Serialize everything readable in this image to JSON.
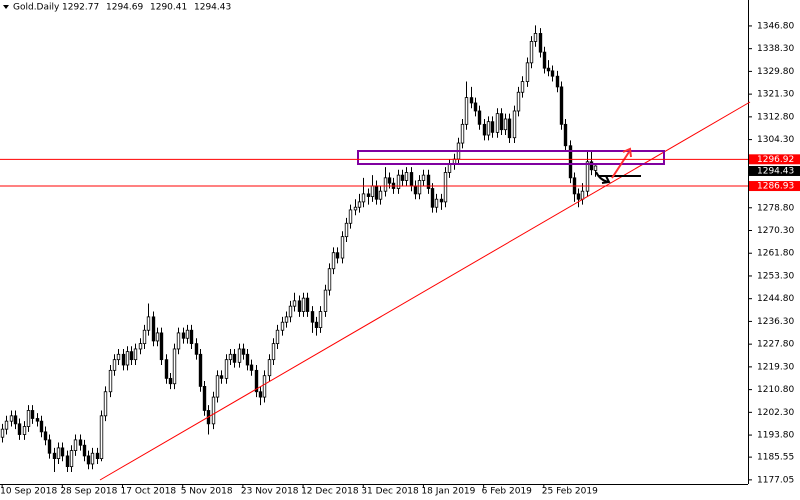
{
  "chart_data": {
    "type": "candlestick",
    "title": "Gold.Daily",
    "xlim": [
      -0.5,
      173.5
    ],
    "ylim": [
      1175.5,
      1356.5
    ],
    "yticks": [
      {
        "value": 1346.8,
        "label": "1346.80"
      },
      {
        "value": 1338.3,
        "label": "1338.30"
      },
      {
        "value": 1329.8,
        "label": "1329.80"
      },
      {
        "value": 1321.3,
        "label": "1321.30"
      },
      {
        "value": 1312.8,
        "label": "1312.80"
      },
      {
        "value": 1304.3,
        "label": "1304.30"
      },
      {
        "value": 1278.8,
        "label": "1278.80"
      },
      {
        "value": 1270.3,
        "label": "1270.30"
      },
      {
        "value": 1261.8,
        "label": "1261.80"
      },
      {
        "value": 1253.3,
        "label": "1253.30"
      },
      {
        "value": 1244.8,
        "label": "1244.80"
      },
      {
        "value": 1236.3,
        "label": "1236.30"
      },
      {
        "value": 1227.8,
        "label": "1227.80"
      },
      {
        "value": 1219.3,
        "label": "1219.30"
      },
      {
        "value": 1210.8,
        "label": "1210.80"
      },
      {
        "value": 1202.3,
        "label": "1202.30"
      },
      {
        "value": 1193.8,
        "label": "1193.80"
      },
      {
        "value": 1185.55,
        "label": "1185.55"
      },
      {
        "value": 1177.05,
        "label": "1177.05"
      }
    ],
    "xticks": [
      {
        "value": 0,
        "label": "10 Sep 2018"
      },
      {
        "value": 14,
        "label": "28 Sep 2018"
      },
      {
        "value": 28,
        "label": "17 Oct 2018"
      },
      {
        "value": 42,
        "label": "5 Nov 2018"
      },
      {
        "value": 56,
        "label": "23 Nov 2018"
      },
      {
        "value": 70,
        "label": "12 Dec 2018"
      },
      {
        "value": 84,
        "label": "31 Dec 2018"
      },
      {
        "value": 98,
        "label": "18 Jan 2019"
      },
      {
        "value": 112,
        "label": "6 Feb 2019"
      },
      {
        "value": 126,
        "label": "25 Feb 2019"
      }
    ],
    "hlines": [
      1296.92,
      1286.93
    ],
    "hline_color": "#ff0000",
    "bull_color": "#ffffff",
    "bear_color": "#000000",
    "ohlc": [
      [
        1193,
        1198,
        1191,
        1196
      ],
      [
        1196,
        1201,
        1194,
        1199
      ],
      [
        1199,
        1203,
        1197,
        1201
      ],
      [
        1201,
        1203,
        1196,
        1198
      ],
      [
        1198,
        1200,
        1192,
        1194
      ],
      [
        1194,
        1199,
        1192,
        1197
      ],
      [
        1197,
        1205,
        1195,
        1203
      ],
      [
        1203,
        1205,
        1198,
        1200
      ],
      [
        1200,
        1202,
        1197,
        1199
      ],
      [
        1199,
        1201,
        1193,
        1195
      ],
      [
        1195,
        1197,
        1190,
        1192
      ],
      [
        1192,
        1194,
        1185,
        1187
      ],
      [
        1187,
        1189,
        1180,
        1185
      ],
      [
        1185,
        1191,
        1183,
        1189
      ],
      [
        1189,
        1191,
        1184,
        1186
      ],
      [
        1186,
        1188,
        1180,
        1182
      ],
      [
        1182,
        1190,
        1180,
        1188
      ],
      [
        1188,
        1194,
        1186,
        1192
      ],
      [
        1192,
        1194,
        1188,
        1190
      ],
      [
        1190,
        1192,
        1184,
        1186
      ],
      [
        1186,
        1188,
        1181,
        1183
      ],
      [
        1183,
        1189,
        1181,
        1187
      ],
      [
        1187,
        1189,
        1183,
        1185
      ],
      [
        1185,
        1203,
        1184,
        1201
      ],
      [
        1201,
        1212,
        1199,
        1210
      ],
      [
        1210,
        1220,
        1208,
        1218
      ],
      [
        1218,
        1224,
        1216,
        1222
      ],
      [
        1222,
        1226,
        1220,
        1224
      ],
      [
        1224,
        1226,
        1218,
        1220
      ],
      [
        1220,
        1227,
        1218,
        1225
      ],
      [
        1225,
        1227,
        1220,
        1222
      ],
      [
        1222,
        1228,
        1220,
        1226
      ],
      [
        1226,
        1230,
        1224,
        1228
      ],
      [
        1228,
        1235,
        1226,
        1233
      ],
      [
        1233,
        1243,
        1231,
        1238
      ],
      [
        1238,
        1240,
        1227,
        1229
      ],
      [
        1229,
        1234,
        1227,
        1232
      ],
      [
        1232,
        1234,
        1220,
        1222
      ],
      [
        1222,
        1224,
        1213,
        1215
      ],
      [
        1215,
        1217,
        1211,
        1213
      ],
      [
        1213,
        1228,
        1211,
        1226
      ],
      [
        1226,
        1234,
        1224,
        1232
      ],
      [
        1232,
        1234,
        1228,
        1230
      ],
      [
        1230,
        1235,
        1228,
        1233
      ],
      [
        1233,
        1235,
        1226,
        1228
      ],
      [
        1228,
        1230,
        1222,
        1224
      ],
      [
        1224,
        1226,
        1210,
        1212
      ],
      [
        1212,
        1214,
        1201,
        1203
      ],
      [
        1203,
        1205,
        1194,
        1198
      ],
      [
        1198,
        1210,
        1196,
        1208
      ],
      [
        1208,
        1218,
        1206,
        1216
      ],
      [
        1216,
        1218,
        1213,
        1215
      ],
      [
        1215,
        1224,
        1213,
        1222
      ],
      [
        1222,
        1226,
        1220,
        1224
      ],
      [
        1224,
        1226,
        1219,
        1221
      ],
      [
        1221,
        1228,
        1219,
        1226
      ],
      [
        1226,
        1228,
        1222,
        1224
      ],
      [
        1224,
        1226,
        1218,
        1220
      ],
      [
        1220,
        1222,
        1216,
        1218
      ],
      [
        1218,
        1220,
        1208,
        1210
      ],
      [
        1210,
        1212,
        1205,
        1208
      ],
      [
        1208,
        1218,
        1206,
        1216
      ],
      [
        1216,
        1224,
        1214,
        1222
      ],
      [
        1222,
        1230,
        1220,
        1228
      ],
      [
        1228,
        1235,
        1226,
        1233
      ],
      [
        1233,
        1238,
        1231,
        1236
      ],
      [
        1236,
        1240,
        1234,
        1238
      ],
      [
        1238,
        1244,
        1236,
        1242
      ],
      [
        1242,
        1247,
        1240,
        1244
      ],
      [
        1244,
        1246,
        1238,
        1240
      ],
      [
        1240,
        1247,
        1238,
        1245
      ],
      [
        1245,
        1247,
        1238,
        1240
      ],
      [
        1240,
        1242,
        1232,
        1236
      ],
      [
        1236,
        1238,
        1231,
        1234
      ],
      [
        1234,
        1242,
        1232,
        1240
      ],
      [
        1240,
        1250,
        1238,
        1248
      ],
      [
        1248,
        1258,
        1246,
        1256
      ],
      [
        1256,
        1264,
        1254,
        1262
      ],
      [
        1262,
        1264,
        1258,
        1260
      ],
      [
        1260,
        1270,
        1258,
        1268
      ],
      [
        1268,
        1275,
        1266,
        1273
      ],
      [
        1273,
        1280,
        1271,
        1278
      ],
      [
        1278,
        1282,
        1276,
        1279
      ],
      [
        1279,
        1284,
        1277,
        1281
      ],
      [
        1281,
        1290,
        1279,
        1284
      ],
      [
        1284,
        1286,
        1280,
        1283
      ],
      [
        1283,
        1291,
        1281,
        1287
      ],
      [
        1287,
        1289,
        1280,
        1282
      ],
      [
        1282,
        1287,
        1280,
        1285
      ],
      [
        1285,
        1294,
        1283,
        1290
      ],
      [
        1290,
        1292,
        1286,
        1288
      ],
      [
        1288,
        1290,
        1284,
        1286
      ],
      [
        1286,
        1293,
        1284,
        1291
      ],
      [
        1291,
        1293,
        1287,
        1289
      ],
      [
        1289,
        1294,
        1287,
        1292
      ],
      [
        1292,
        1294,
        1285,
        1287
      ],
      [
        1287,
        1289,
        1282,
        1284
      ],
      [
        1284,
        1291,
        1282,
        1289
      ],
      [
        1289,
        1293,
        1287,
        1291
      ],
      [
        1291,
        1293,
        1284,
        1286
      ],
      [
        1286,
        1288,
        1277,
        1279
      ],
      [
        1279,
        1284,
        1277,
        1282
      ],
      [
        1282,
        1284,
        1278,
        1281
      ],
      [
        1281,
        1294,
        1279,
        1292
      ],
      [
        1292,
        1297,
        1290,
        1295
      ],
      [
        1295,
        1299,
        1293,
        1297
      ],
      [
        1297,
        1305,
        1295,
        1303
      ],
      [
        1303,
        1312,
        1301,
        1310
      ],
      [
        1310,
        1326,
        1308,
        1320
      ],
      [
        1320,
        1324,
        1316,
        1318
      ],
      [
        1318,
        1320,
        1313,
        1315
      ],
      [
        1315,
        1317,
        1308,
        1310
      ],
      [
        1310,
        1312,
        1304,
        1306
      ],
      [
        1306,
        1313,
        1304,
        1311
      ],
      [
        1311,
        1313,
        1305,
        1307
      ],
      [
        1307,
        1316,
        1305,
        1314
      ],
      [
        1314,
        1316,
        1306,
        1308
      ],
      [
        1308,
        1314,
        1306,
        1312
      ],
      [
        1312,
        1314,
        1303,
        1305
      ],
      [
        1305,
        1317,
        1303,
        1315
      ],
      [
        1315,
        1324,
        1313,
        1322
      ],
      [
        1322,
        1328,
        1320,
        1326
      ],
      [
        1326,
        1335,
        1324,
        1333
      ],
      [
        1333,
        1343,
        1331,
        1341
      ],
      [
        1341,
        1347,
        1339,
        1344
      ],
      [
        1344,
        1346,
        1335,
        1337
      ],
      [
        1337,
        1339,
        1329,
        1331
      ],
      [
        1331,
        1334,
        1328,
        1330
      ],
      [
        1330,
        1332,
        1326,
        1328
      ],
      [
        1328,
        1330,
        1322,
        1324
      ],
      [
        1324,
        1326,
        1308,
        1310
      ],
      [
        1310,
        1312,
        1300,
        1302
      ],
      [
        1302,
        1304,
        1288,
        1290
      ],
      [
        1290,
        1292,
        1281,
        1284
      ],
      [
        1284,
        1286,
        1279,
        1282
      ],
      [
        1282,
        1288,
        1280,
        1285
      ],
      [
        1285,
        1300,
        1283,
        1296
      ],
      [
        1296,
        1300,
        1291,
        1293
      ],
      [
        1292.77,
        1294.69,
        1290.41,
        1294.43
      ]
    ]
  }
}
